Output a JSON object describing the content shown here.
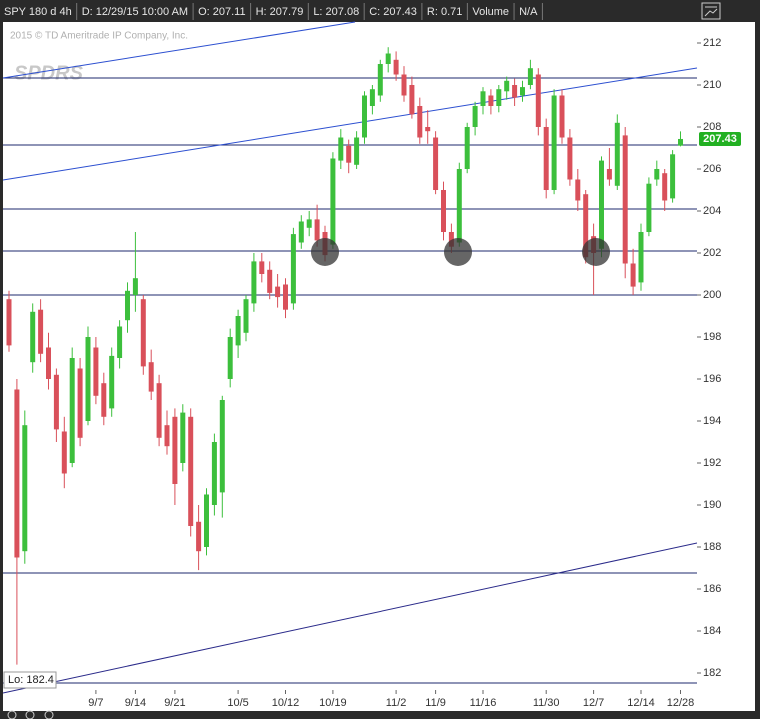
{
  "header": {
    "fields": [
      "SPY 180 d 4h",
      "D: 12/29/15 10:00 AM",
      "O: 207.11",
      "H: 207.79",
      "L: 207.08",
      "C: 207.43",
      "R: 0.71",
      "Volume",
      "N/A"
    ]
  },
  "chart_data": {
    "type": "candlestick",
    "watermark": "2015 © TD Ameritrade IP Company, Inc.",
    "logo": "SPDRS",
    "low_label": "Lo: 182.4",
    "last_price": 207.43,
    "up_color": "#3cbf3c",
    "down_color": "#d9505a",
    "last_price_color": "#22b022",
    "x": [
      null,
      null,
      null,
      null,
      null,
      null,
      null,
      null,
      null,
      null,
      null,
      "9/7",
      null,
      null,
      null,
      null,
      "9/14",
      null,
      null,
      null,
      null,
      "9/21",
      null,
      null,
      null,
      null,
      null,
      null,
      null,
      "10/5",
      null,
      null,
      null,
      null,
      null,
      "10/12",
      null,
      null,
      null,
      null,
      null,
      "10/19",
      null,
      null,
      null,
      null,
      null,
      null,
      null,
      "11/2",
      null,
      null,
      null,
      null,
      "11/9",
      null,
      null,
      null,
      null,
      null,
      "11/16",
      null,
      null,
      null,
      null,
      null,
      null,
      null,
      "11/30",
      null,
      null,
      null,
      null,
      null,
      "12/7",
      null,
      null,
      null,
      null,
      null,
      "12/14",
      null,
      null,
      null,
      null,
      "12/28"
    ],
    "open": [
      199.8,
      195.5,
      187.8,
      196.8,
      199.3,
      197.5,
      196.2,
      193.5,
      192.0,
      196.5,
      194.0,
      197.5,
      195.8,
      194.6,
      197.0,
      198.8,
      200.0,
      199.8,
      196.8,
      195.8,
      193.8,
      194.2,
      192.0,
      194.2,
      189.2,
      188.0,
      190.0,
      190.6,
      196.0,
      197.6,
      198.2,
      199.6,
      201.6,
      201.2,
      200.4,
      200.5,
      199.6,
      202.5,
      203.2,
      203.6,
      203.0,
      202.4,
      206.4,
      207.1,
      206.2,
      207.5,
      209.0,
      209.5,
      211.0,
      211.2,
      210.5,
      210.0,
      209.0,
      208.0,
      207.5,
      205.0,
      203.0,
      202.5,
      206.0,
      208.0,
      209.0,
      209.5,
      209.0,
      209.7,
      210.0,
      209.5,
      210.0,
      210.5,
      208.0,
      205.0,
      209.5,
      207.5,
      205.5,
      204.8,
      202.8,
      202.2,
      206.0,
      205.2,
      207.6,
      201.5,
      200.6,
      203.0,
      205.5,
      205.8,
      204.6,
      207.11
    ],
    "high": [
      200.2,
      196.0,
      194.5,
      199.6,
      199.8,
      198.2,
      196.5,
      194.2,
      197.5,
      197.0,
      198.5,
      198.0,
      196.3,
      197.5,
      198.8,
      200.6,
      203.0,
      200.0,
      197.4,
      196.2,
      194.5,
      194.6,
      194.8,
      194.6,
      190.0,
      190.8,
      193.4,
      195.2,
      198.4,
      199.3,
      200.0,
      202.0,
      202.0,
      201.6,
      201.0,
      200.8,
      203.2,
      203.8,
      204.0,
      204.3,
      203.3,
      206.8,
      207.9,
      207.4,
      207.8,
      209.7,
      210.0,
      211.2,
      211.8,
      211.6,
      210.9,
      210.4,
      209.4,
      208.8,
      207.8,
      205.4,
      203.4,
      206.3,
      208.2,
      209.2,
      209.9,
      209.8,
      210.0,
      210.4,
      210.3,
      210.2,
      211.2,
      210.8,
      208.4,
      209.8,
      209.8,
      207.9,
      206.0,
      205.0,
      203.4,
      206.6,
      207.0,
      208.6,
      208.0,
      202.2,
      203.4,
      205.6,
      206.4,
      206.0,
      206.9,
      207.79
    ],
    "low": [
      197.3,
      182.4,
      187.2,
      196.3,
      196.8,
      195.5,
      193.0,
      190.8,
      191.8,
      192.8,
      193.8,
      194.8,
      193.8,
      194.2,
      196.5,
      198.2,
      199.2,
      196.2,
      195.0,
      192.8,
      192.4,
      190.0,
      191.6,
      188.5,
      186.9,
      187.6,
      189.5,
      189.4,
      195.6,
      197.0,
      197.8,
      199.2,
      200.6,
      199.8,
      199.4,
      198.9,
      199.3,
      202.2,
      202.8,
      202.3,
      201.6,
      202.2,
      206.0,
      205.8,
      206.0,
      207.2,
      208.6,
      209.2,
      210.6,
      210.2,
      209.2,
      208.4,
      207.2,
      207.2,
      204.8,
      202.6,
      202.0,
      202.3,
      205.8,
      207.6,
      208.6,
      208.6,
      208.7,
      209.3,
      209.0,
      209.2,
      209.8,
      207.6,
      204.6,
      204.8,
      207.2,
      205.2,
      204.0,
      201.5,
      200.0,
      201.8,
      205.2,
      205.0,
      200.8,
      200.0,
      200.2,
      202.8,
      205.2,
      204.0,
      204.4,
      207.08
    ],
    "close": [
      197.6,
      187.5,
      193.8,
      199.2,
      197.2,
      196.0,
      193.6,
      191.5,
      197.0,
      193.2,
      198.0,
      195.2,
      194.2,
      197.1,
      198.5,
      200.2,
      200.8,
      196.6,
      195.4,
      193.2,
      192.8,
      191.0,
      194.4,
      189.0,
      187.8,
      190.5,
      193.0,
      195.0,
      198.0,
      199.0,
      199.8,
      201.6,
      201.0,
      200.1,
      199.9,
      199.3,
      202.9,
      203.5,
      203.6,
      202.6,
      201.9,
      206.5,
      207.5,
      206.3,
      207.5,
      209.5,
      209.8,
      211.0,
      211.5,
      210.5,
      209.5,
      208.6,
      207.5,
      207.8,
      205.0,
      203.0,
      202.3,
      206.0,
      208.0,
      209.0,
      209.7,
      209.0,
      209.8,
      210.2,
      209.4,
      209.9,
      210.8,
      208.0,
      205.0,
      209.5,
      207.5,
      205.5,
      204.5,
      201.8,
      202.0,
      206.4,
      205.5,
      208.2,
      201.5,
      200.4,
      203.0,
      205.3,
      206.0,
      204.5,
      206.7,
      207.43
    ],
    "ylim": [
      181.19,
      213
    ],
    "yticks": [
      182,
      184,
      186,
      188,
      190,
      192,
      194,
      196,
      198,
      200,
      202,
      204,
      206,
      208,
      210,
      212
    ],
    "grid": false
  }
}
